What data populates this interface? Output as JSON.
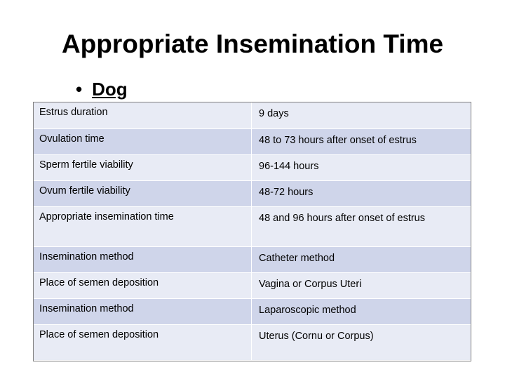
{
  "title": "Appropriate Insemination Time",
  "bullet": {
    "marker": "•",
    "label": "Dog"
  },
  "rows": [
    {
      "label": "Estrus duration",
      "value": "9 days"
    },
    {
      "label": "Ovulation time",
      "value": "48 to 73 hours after onset of estrus"
    },
    {
      "label": "Sperm fertile viability",
      "value": "96-144 hours"
    },
    {
      "label": "Ovum fertile viability",
      "value": "48-72 hours"
    },
    {
      "label": "Appropriate insemination time",
      "value": "48 and 96 hours after onset of estrus"
    },
    {
      "label": "Insemination method",
      "value": "Catheter method"
    },
    {
      "label": "Place of semen deposition",
      "value": "Vagina or Corpus Uteri"
    },
    {
      "label": "Insemination method",
      "value": "Laparoscopic method"
    },
    {
      "label": "Place of semen deposition",
      "value": "Uterus (Cornu or Corpus)"
    }
  ],
  "colors": {
    "row_light": "#e8ebf5",
    "row_dark": "#cfd5ea",
    "frame": "#7f7f7f"
  }
}
